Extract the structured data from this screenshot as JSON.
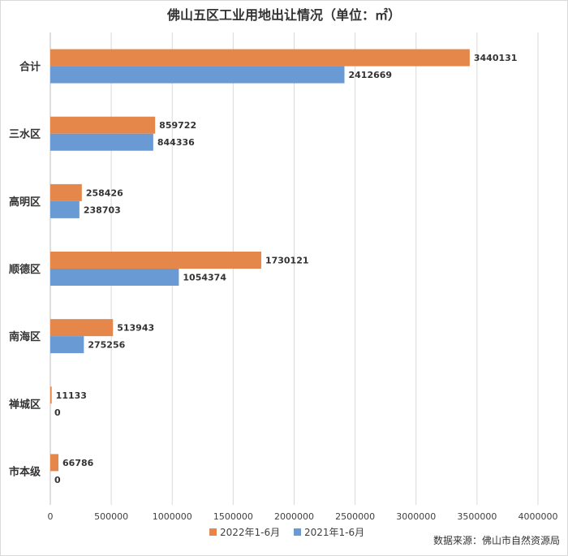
{
  "chart_data": {
    "type": "bar",
    "orientation": "horizontal",
    "title": "佛山五区工业用地出让情况（单位：㎡）",
    "categories": [
      "合计",
      "三水区",
      "高明区",
      "顺德区",
      "南海区",
      "禅城区",
      "市本级"
    ],
    "series": [
      {
        "name": "2022年1-6月",
        "values": [
          3440131,
          859722,
          258426,
          1730121,
          513943,
          11133,
          66786
        ],
        "color": "#E5874A"
      },
      {
        "name": "2021年1-6月",
        "values": [
          2412669,
          844336,
          238703,
          1054374,
          275256,
          0,
          0
        ],
        "color": "#6A9AD3"
      }
    ],
    "xlim": [
      0,
      4000000
    ],
    "xticks": [
      "0",
      "500000",
      "1000000",
      "1500000",
      "2000000",
      "2500000",
      "3000000",
      "3500000",
      "4000000"
    ],
    "grid": "vertical",
    "legend_position": "bottom",
    "source": "数据来源：佛山市自然资源局"
  }
}
